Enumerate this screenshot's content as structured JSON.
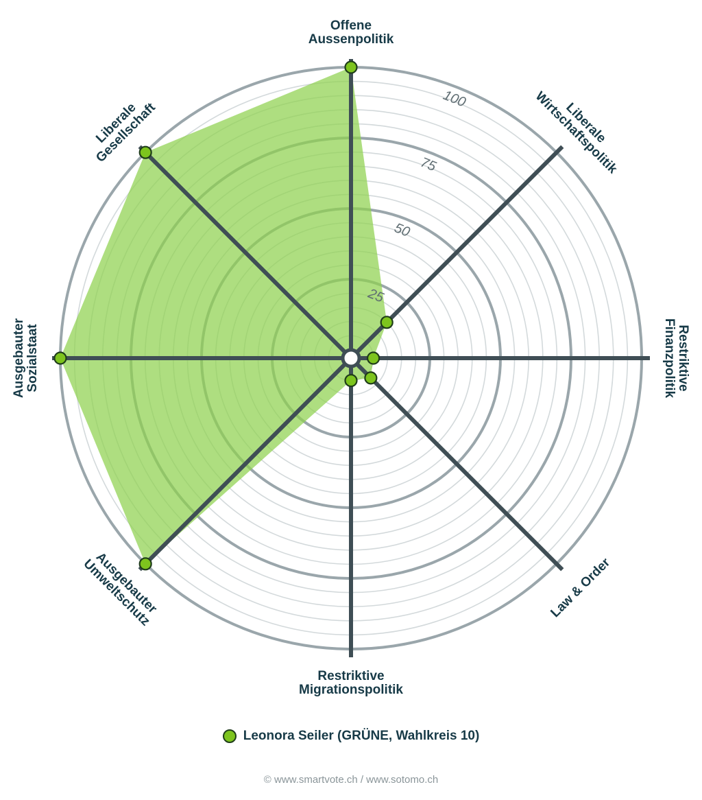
{
  "chart_data": {
    "type": "radar",
    "axes": [
      {
        "name": "offene-aussenpolitik",
        "lines": [
          "Offene",
          "Aussenpolitik"
        ],
        "value": 100
      },
      {
        "name": "liberale-wirtschaftspolitik",
        "lines": [
          "Liberale",
          "Wirtschaftspolitik"
        ],
        "value": 15
      },
      {
        "name": "restriktive-finanzpolitik",
        "lines": [
          "Restriktive",
          "Finanzpolitik"
        ],
        "value": 5
      },
      {
        "name": "law-and-order",
        "lines": [
          "Law & Order"
        ],
        "value": 7
      },
      {
        "name": "restriktive-migrationspolitik",
        "lines": [
          "Restriktive",
          "Migrationspolitik"
        ],
        "value": 5
      },
      {
        "name": "ausgebauter-umweltschutz",
        "lines": [
          "Ausgebauter",
          "Umweltschutz"
        ],
        "value": 100
      },
      {
        "name": "ausgebauter-sozialstaat",
        "lines": [
          "Ausgebauter",
          "Sozialstaat"
        ],
        "value": 100
      },
      {
        "name": "liberale-gesellschaft",
        "lines": [
          "Liberale",
          "Gesellschaft"
        ],
        "value": 100
      }
    ],
    "range": [
      0,
      100
    ],
    "ticks": [
      25,
      50,
      75,
      100
    ],
    "series": [
      {
        "name": "Leonora Seiler (GRÜNE, Wahlkreis 10)",
        "color": "#7dc41e",
        "fill": "#8fd14f"
      }
    ]
  },
  "legend": {
    "label": "Leonora Seiler (GRÜNE, Wahlkreis 10)",
    "color": "#7dc41e"
  },
  "credit": "© www.smartvote.ch / www.sotomo.ch",
  "colors": {
    "axis": "#3f4e55",
    "ring_major": "#9aa6ab",
    "ring_minor": "#d3d9db",
    "text": "#173a47"
  }
}
